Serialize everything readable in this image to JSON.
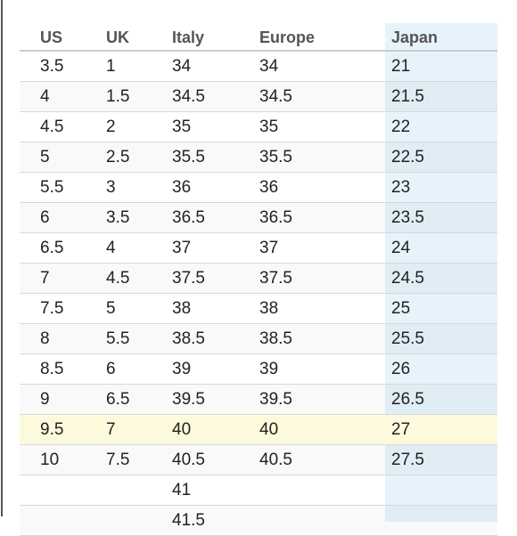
{
  "table": {
    "header": [
      "US",
      "UK",
      "Italy",
      "Europe",
      "Japan"
    ],
    "rows": [
      [
        "3.5",
        "1",
        "34",
        "34",
        "21"
      ],
      [
        "4",
        "1.5",
        "34.5",
        "34.5",
        "21.5"
      ],
      [
        "4.5",
        "2",
        "35",
        "35",
        "22"
      ],
      [
        "5",
        "2.5",
        "35.5",
        "35.5",
        "22.5"
      ],
      [
        "5.5",
        "3",
        "36",
        "36",
        "23"
      ],
      [
        "6",
        "3.5",
        "36.5",
        "36.5",
        "23.5"
      ],
      [
        "6.5",
        "4",
        "37",
        "37",
        "24"
      ],
      [
        "7",
        "4.5",
        "37.5",
        "37.5",
        "24.5"
      ],
      [
        "7.5",
        "5",
        "38",
        "38",
        "25"
      ],
      [
        "8",
        "5.5",
        "38.5",
        "38.5",
        "25.5"
      ],
      [
        "8.5",
        "6",
        "39",
        "39",
        "26"
      ],
      [
        "9",
        "6.5",
        "39.5",
        "39.5",
        "26.5"
      ],
      [
        "9.5",
        "7",
        "40",
        "40",
        "27"
      ],
      [
        "10",
        "7.5",
        "40.5",
        "40.5",
        "27.5"
      ],
      [
        null,
        null,
        "41",
        null,
        null
      ],
      [
        null,
        null,
        "41.5",
        null,
        null
      ]
    ]
  }
}
